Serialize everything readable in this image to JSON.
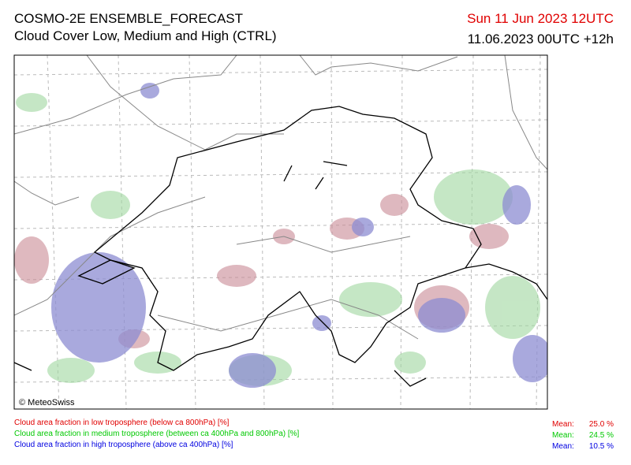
{
  "header": {
    "title": "COSMO-2E ENSEMBLE_FORECAST",
    "subtitle": "Cloud Cover Low, Medium and High (CTRL)",
    "valid_time": "Sun 11 Jun 2023 12UTC",
    "run_time": "11.06.2023 00UTC +12h"
  },
  "map": {
    "credit": "© MeteoSwiss"
  },
  "legend": [
    {
      "label": "Cloud area fraction in low troposphere (below ca 800hPa) [%]",
      "mean_label": "Mean:",
      "mean": "25.0 %"
    },
    {
      "label": "Cloud area fraction in medium troposphere (between ca 400hPa and 800hPa) [%]",
      "mean_label": "Mean:",
      "mean": "24.5 %"
    },
    {
      "label": "Cloud area fraction in high troposphere (above ca 400hPa) [%]",
      "mean_label": "Mean:",
      "mean": "10.5 %"
    }
  ]
}
